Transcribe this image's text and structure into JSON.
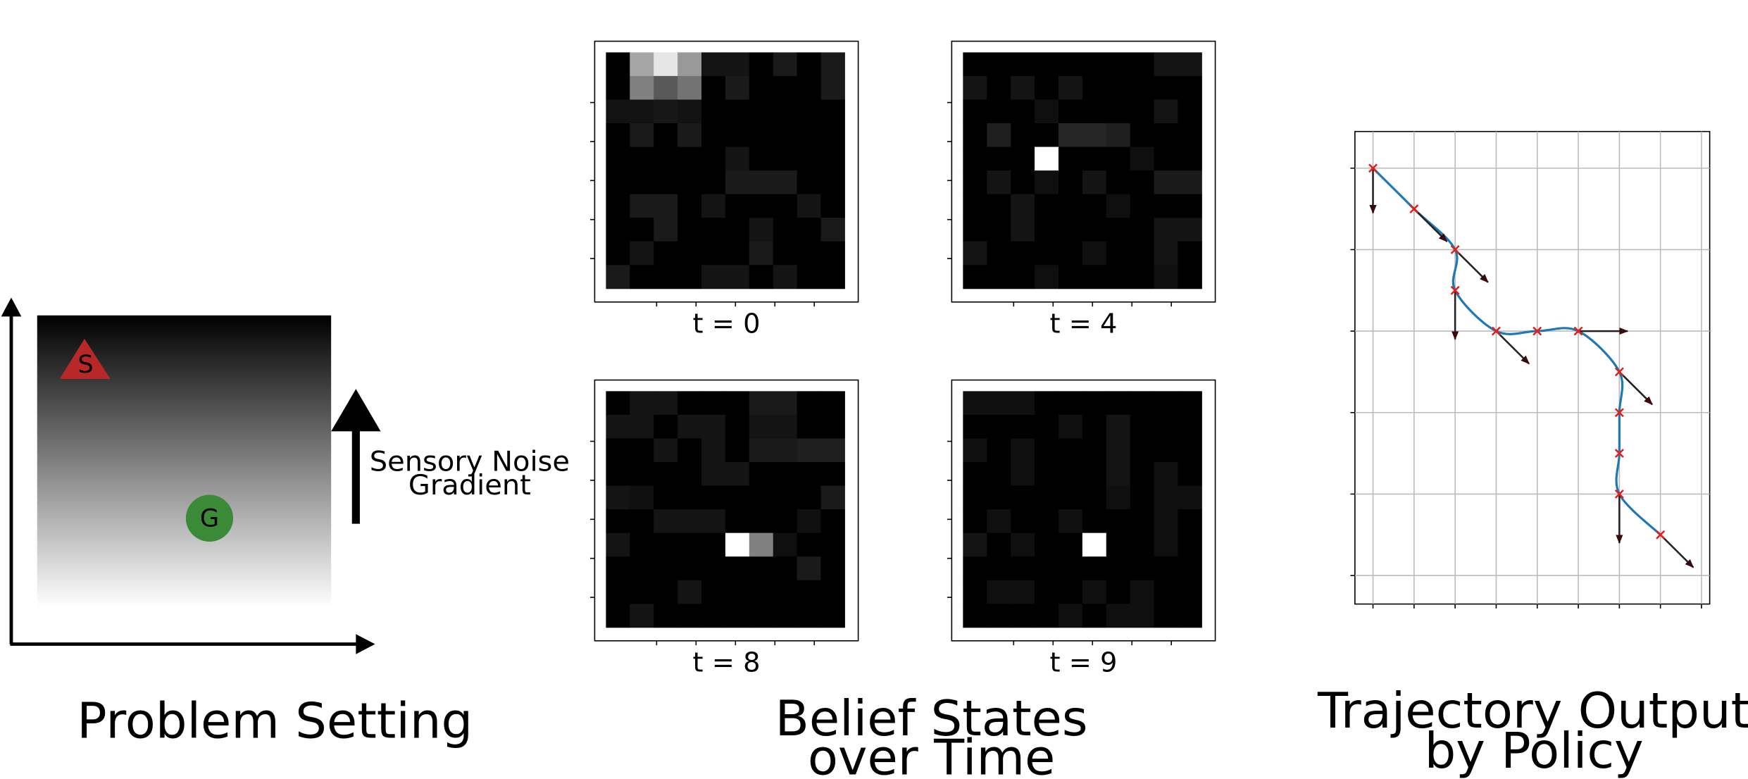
{
  "problem_setting": {
    "start_label": "S",
    "goal_label": "G",
    "gradient_label": [
      "Sensory Noise",
      "Gradient"
    ],
    "caption": "Problem Setting"
  },
  "belief_states": {
    "caption": [
      "Belief States",
      "over Time"
    ],
    "panels": [
      {
        "label": "t = 0",
        "grid": [
          [
            0,
            0.65,
            0.9,
            0.6,
            0.08,
            0.08,
            0,
            0.1,
            0,
            0.1
          ],
          [
            0,
            0.5,
            0.35,
            0.45,
            0,
            0.1,
            0,
            0,
            0,
            0.1
          ],
          [
            0.07,
            0.07,
            0.09,
            0.07,
            0,
            0,
            0,
            0,
            0,
            0
          ],
          [
            0,
            0.1,
            0,
            0.1,
            0,
            0,
            0,
            0,
            0,
            0
          ],
          [
            0,
            0,
            0,
            0,
            0,
            0.08,
            0,
            0,
            0,
            0
          ],
          [
            0,
            0,
            0,
            0,
            0,
            0.1,
            0.1,
            0.1,
            0,
            0
          ],
          [
            0,
            0.1,
            0.1,
            0,
            0.08,
            0,
            0,
            0,
            0.08,
            0
          ],
          [
            0,
            0,
            0.1,
            0,
            0,
            0,
            0.08,
            0,
            0,
            0.1
          ],
          [
            0,
            0.08,
            0,
            0,
            0,
            0,
            0.1,
            0,
            0,
            0
          ],
          [
            0.1,
            0,
            0,
            0,
            0.08,
            0.08,
            0,
            0.08,
            0,
            0
          ]
        ]
      },
      {
        "label": "t = 4",
        "grid": [
          [
            0,
            0,
            0,
            0,
            0,
            0,
            0,
            0,
            0.08,
            0.08
          ],
          [
            0.08,
            0,
            0.08,
            0,
            0.08,
            0,
            0,
            0,
            0,
            0
          ],
          [
            0,
            0,
            0,
            0.06,
            0,
            0,
            0,
            0,
            0.08,
            0
          ],
          [
            0,
            0.12,
            0,
            0,
            0.15,
            0.15,
            0.12,
            0,
            0,
            0
          ],
          [
            0,
            0,
            0,
            1,
            0,
            0,
            0,
            0.06,
            0,
            0
          ],
          [
            0,
            0.08,
            0,
            0.06,
            0,
            0.08,
            0,
            0,
            0.1,
            0.1
          ],
          [
            0,
            0,
            0.08,
            0,
            0,
            0,
            0.06,
            0,
            0,
            0
          ],
          [
            0,
            0,
            0.08,
            0,
            0,
            0,
            0,
            0,
            0.08,
            0.08
          ],
          [
            0.08,
            0,
            0,
            0,
            0,
            0.06,
            0,
            0,
            0.08,
            0
          ],
          [
            0,
            0,
            0,
            0.06,
            0,
            0,
            0,
            0,
            0.06,
            0
          ]
        ]
      },
      {
        "label": "t = 8",
        "grid": [
          [
            0,
            0.08,
            0.08,
            0,
            0,
            0,
            0.1,
            0.1,
            0,
            0
          ],
          [
            0.08,
            0.08,
            0,
            0.08,
            0.08,
            0,
            0.08,
            0.08,
            0,
            0
          ],
          [
            0,
            0,
            0.08,
            0,
            0.08,
            0,
            0.1,
            0.1,
            0.12,
            0.12
          ],
          [
            0,
            0,
            0,
            0,
            0.08,
            0.08,
            0,
            0,
            0,
            0
          ],
          [
            0.08,
            0.06,
            0,
            0,
            0,
            0,
            0,
            0,
            0,
            0.1
          ],
          [
            0,
            0,
            0.08,
            0.08,
            0.08,
            0,
            0,
            0,
            0.06,
            0
          ],
          [
            0.08,
            0,
            0,
            0,
            0,
            1,
            0.5,
            0.06,
            0,
            0
          ],
          [
            0,
            0,
            0,
            0,
            0,
            0,
            0,
            0,
            0.1,
            0
          ],
          [
            0,
            0,
            0,
            0.08,
            0,
            0,
            0,
            0,
            0,
            0
          ],
          [
            0,
            0.08,
            0,
            0,
            0,
            0,
            0,
            0,
            0,
            0
          ]
        ]
      },
      {
        "label": "t = 9",
        "grid": [
          [
            0.06,
            0.06,
            0.06,
            0,
            0,
            0,
            0,
            0,
            0,
            0
          ],
          [
            0,
            0,
            0,
            0,
            0.06,
            0,
            0.08,
            0,
            0,
            0
          ],
          [
            0.06,
            0,
            0.06,
            0,
            0,
            0,
            0.08,
            0,
            0,
            0
          ],
          [
            0,
            0,
            0.06,
            0,
            0,
            0,
            0.08,
            0,
            0.06,
            0
          ],
          [
            0,
            0,
            0,
            0,
            0,
            0,
            0.06,
            0,
            0.06,
            0.06
          ],
          [
            0,
            0.06,
            0,
            0,
            0.06,
            0,
            0,
            0,
            0.06,
            0
          ],
          [
            0.08,
            0,
            0.06,
            0,
            0,
            1,
            0,
            0,
            0.06,
            0
          ],
          [
            0,
            0,
            0,
            0,
            0,
            0,
            0,
            0,
            0,
            0
          ],
          [
            0,
            0.06,
            0.06,
            0,
            0,
            0.06,
            0,
            0.06,
            0,
            0
          ],
          [
            0,
            0,
            0,
            0,
            0.06,
            0,
            0.06,
            0.06,
            0,
            0
          ]
        ]
      }
    ]
  },
  "trajectory": {
    "caption": [
      "Trajectory Output",
      "by Policy"
    ],
    "xlim": [
      -0.44,
      8.2
    ],
    "ylim": [
      -0.9,
      10.7
    ],
    "y_inverted": true,
    "xticks": [
      0,
      1,
      2,
      3,
      4,
      5,
      6,
      7,
      8
    ],
    "yticks": [
      0,
      2,
      4,
      6,
      8,
      10
    ],
    "grid": true,
    "line_color": "#1f77b4",
    "marker_color": "#e0201c",
    "x": [
      0,
      1,
      2,
      2,
      3,
      4,
      5,
      6,
      6,
      6,
      6,
      7
    ],
    "y": [
      0,
      1,
      2,
      3,
      4,
      4,
      4,
      5,
      6,
      7,
      8,
      9
    ],
    "actions": [
      [
        0,
        1.1
      ],
      [
        0.8,
        0.8
      ],
      [
        0.8,
        0.8
      ],
      [
        0,
        1.2
      ],
      [
        0.8,
        0.8
      ],
      null,
      [
        1.2,
        0
      ],
      [
        0.8,
        0.8
      ],
      null,
      null,
      [
        0,
        1.2
      ],
      [
        0.8,
        0.8
      ]
    ]
  }
}
